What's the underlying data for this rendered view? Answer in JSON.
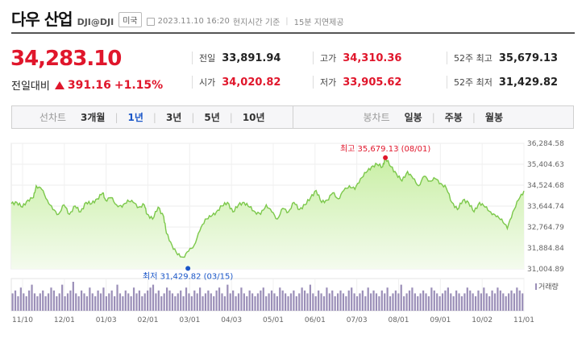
{
  "header": {
    "title": "다우 산업",
    "code": "DJI@DJI",
    "market": "미국",
    "datetime": "2023.11.10 16:20",
    "time_note": "현지시간 기준",
    "delay_note": "15분 지연제공"
  },
  "quote": {
    "price": "34,283.10",
    "change_label": "전일대비",
    "change_value": "391.16",
    "change_pct": "+1.15%",
    "stats": {
      "prev_close_label": "전일",
      "prev_close": "33,891.94",
      "high_label": "고가",
      "high": "34,310.36",
      "high52_label": "52주 최고",
      "high52": "35,679.13",
      "open_label": "시가",
      "open": "34,020.82",
      "low_label": "저가",
      "low": "33,905.62",
      "low52_label": "52주 최저",
      "low52": "31,429.82"
    },
    "colors": {
      "up": "#e0162b",
      "down": "#1a56c8"
    }
  },
  "tabs": {
    "line_label": "선차트",
    "line": [
      "3개월",
      "1년",
      "3년",
      "5년",
      "10년"
    ],
    "line_active": "1년",
    "candle_label": "봉차트",
    "candle": [
      "일봉",
      "주봉",
      "월봉"
    ]
  },
  "chart_data": {
    "type": "area",
    "y_ticks": [
      "36,284.58",
      "35,404.63",
      "34,524.68",
      "33,644.74",
      "32,764.79",
      "31,884.84",
      "31,004.89"
    ],
    "ylim": [
      31004.89,
      36284.58
    ],
    "x_ticks": [
      "11/10",
      "12/01",
      "01/03",
      "02/01",
      "03/01",
      "04/03",
      "05/01",
      "06/01",
      "07/03",
      "08/01",
      "09/01",
      "10/02",
      "11/01"
    ],
    "annotations": {
      "max": "최고 35,679.13 (08/01)",
      "min": "최저 31,429.82 (03/15)"
    },
    "anchors": [
      [
        0,
        33750
      ],
      [
        2,
        33800
      ],
      [
        4,
        33600
      ],
      [
        6,
        33900
      ],
      [
        8,
        34000
      ],
      [
        9,
        34500
      ],
      [
        11,
        34350
      ],
      [
        13,
        33900
      ],
      [
        15,
        33500
      ],
      [
        17,
        33300
      ],
      [
        19,
        33700
      ],
      [
        21,
        33300
      ],
      [
        23,
        33650
      ],
      [
        25,
        33400
      ],
      [
        27,
        33800
      ],
      [
        29,
        33750
      ],
      [
        31,
        33950
      ],
      [
        33,
        34200
      ],
      [
        34,
        33900
      ],
      [
        36,
        34000
      ],
      [
        38,
        33700
      ],
      [
        40,
        33600
      ],
      [
        42,
        33900
      ],
      [
        44,
        33800
      ],
      [
        46,
        33600
      ],
      [
        48,
        33700
      ],
      [
        49,
        33300
      ],
      [
        51,
        33100
      ],
      [
        53,
        33600
      ],
      [
        55,
        33200
      ],
      [
        56,
        32500
      ],
      [
        58,
        32000
      ],
      [
        60,
        31600
      ],
      [
        62,
        31500
      ],
      [
        64,
        31750
      ],
      [
        66,
        32000
      ],
      [
        68,
        32600
      ],
      [
        70,
        33100
      ],
      [
        72,
        33200
      ],
      [
        74,
        33400
      ],
      [
        76,
        33650
      ],
      [
        78,
        33800
      ],
      [
        80,
        33400
      ],
      [
        82,
        33700
      ],
      [
        84,
        33800
      ],
      [
        86,
        33600
      ],
      [
        88,
        33400
      ],
      [
        90,
        33300
      ],
      [
        92,
        33700
      ],
      [
        94,
        33400
      ],
      [
        96,
        33100
      ],
      [
        98,
        33550
      ],
      [
        100,
        33400
      ],
      [
        102,
        33800
      ],
      [
        104,
        33500
      ],
      [
        106,
        33700
      ],
      [
        108,
        34000
      ],
      [
        110,
        34300
      ],
      [
        112,
        33800
      ],
      [
        114,
        33900
      ],
      [
        116,
        34200
      ],
      [
        118,
        33950
      ],
      [
        120,
        34300
      ],
      [
        122,
        34500
      ],
      [
        124,
        34350
      ],
      [
        126,
        34800
      ],
      [
        128,
        35050
      ],
      [
        130,
        35300
      ],
      [
        132,
        35400
      ],
      [
        134,
        35300
      ],
      [
        135,
        35679
      ],
      [
        137,
        35300
      ],
      [
        139,
        35000
      ],
      [
        141,
        34700
      ],
      [
        143,
        35100
      ],
      [
        145,
        34800
      ],
      [
        147,
        34500
      ],
      [
        149,
        34900
      ],
      [
        151,
        34700
      ],
      [
        153,
        34800
      ],
      [
        155,
        34600
      ],
      [
        157,
        34400
      ],
      [
        159,
        33800
      ],
      [
        161,
        33500
      ],
      [
        163,
        33900
      ],
      [
        165,
        33800
      ],
      [
        167,
        33400
      ],
      [
        169,
        33800
      ],
      [
        171,
        33600
      ],
      [
        173,
        33400
      ],
      [
        175,
        33200
      ],
      [
        177,
        33100
      ],
      [
        179,
        32700
      ],
      [
        181,
        33400
      ],
      [
        183,
        33900
      ],
      [
        185,
        34283
      ]
    ],
    "volume": [
      0.6,
      0.7,
      0.5,
      0.8,
      0.6,
      0.5,
      0.7,
      0.9,
      0.6,
      0.5,
      0.6,
      0.7,
      0.5,
      0.6,
      0.8,
      0.7,
      0.5,
      0.6,
      0.9,
      0.5,
      0.6,
      0.7,
      1.0,
      0.6,
      0.5,
      0.7,
      0.6,
      0.5,
      0.8,
      0.6,
      0.5,
      0.7,
      0.6,
      0.8,
      0.5,
      0.6,
      0.7,
      0.5,
      0.9,
      0.6,
      0.5,
      0.7,
      0.6,
      0.5,
      0.8,
      0.6,
      0.7,
      0.5,
      0.6,
      0.7,
      0.8,
      0.9,
      0.6,
      0.7,
      0.5,
      0.6,
      0.8,
      0.7,
      0.6,
      0.5,
      0.6,
      0.7,
      0.5,
      0.8,
      0.6,
      0.5,
      0.7,
      0.6,
      0.8,
      0.5,
      0.6,
      0.7,
      0.6,
      0.5,
      0.7,
      0.8,
      0.6,
      0.5,
      0.9,
      0.6,
      0.7,
      0.5,
      0.6,
      0.8,
      0.6,
      0.5,
      0.7,
      0.6,
      0.5,
      0.6,
      0.7,
      0.8,
      0.5,
      0.6,
      0.7,
      0.6,
      0.5,
      0.8,
      0.7,
      0.6,
      0.5,
      0.6,
      0.7,
      0.5,
      0.6,
      0.8,
      0.7,
      0.6,
      0.9,
      0.6,
      0.5,
      0.7,
      0.6,
      0.5,
      0.8,
      0.6,
      0.7,
      0.5,
      0.6,
      0.7,
      0.6,
      0.5,
      0.7,
      0.8,
      0.6,
      0.5,
      0.6,
      0.7,
      0.5,
      0.8,
      0.6,
      0.7,
      0.6,
      0.5,
      0.7,
      0.6,
      0.8,
      0.5,
      0.6,
      0.7,
      0.6,
      0.9,
      0.5,
      0.6,
      0.7,
      0.8,
      0.6,
      0.5,
      0.6,
      0.7,
      0.6,
      0.5,
      0.8,
      0.7,
      0.6,
      0.5,
      0.6,
      0.7,
      0.8,
      0.6,
      0.5,
      0.7,
      0.6,
      0.5,
      0.6,
      0.8,
      0.7,
      0.6,
      0.5,
      0.7,
      0.6,
      0.8,
      0.6,
      0.5,
      0.7,
      0.6,
      0.8,
      0.7,
      0.6,
      0.5,
      0.6,
      0.7,
      0.6,
      0.8,
      0.7,
      0.6
    ],
    "volume_label": "거래량",
    "line_color": "#7cc84b",
    "fill_color": "#c9efa5"
  }
}
